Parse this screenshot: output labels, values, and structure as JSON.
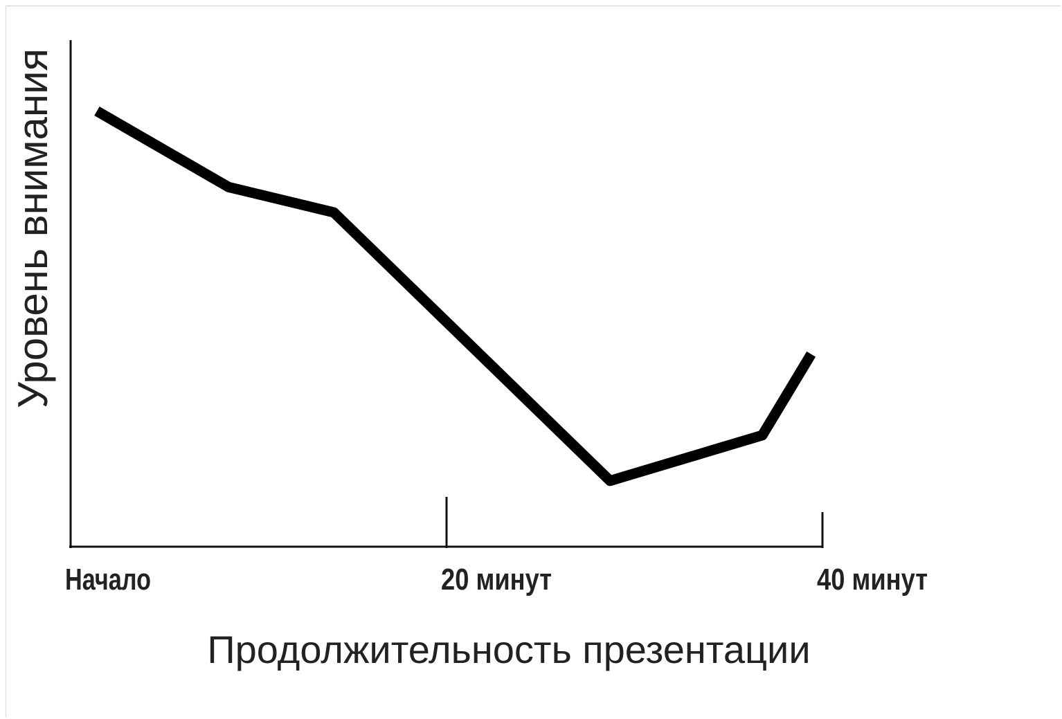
{
  "chart_data": {
    "type": "line",
    "title": "",
    "xlabel": "Продолжительность презентации",
    "ylabel": "Уровень внимания",
    "x_tick_labels": [
      {
        "x": 0,
        "label": "Начало"
      },
      {
        "x": 20,
        "label": "20 минут"
      },
      {
        "x": 40,
        "label": "40 минут"
      }
    ],
    "xlim": [
      0,
      40
    ],
    "ylim": [
      0,
      100
    ],
    "grid": false,
    "series": [
      {
        "x": [
          1.4,
          8.4,
          14,
          28.7,
          36.8,
          39.4
        ],
        "y": [
          86,
          71,
          66,
          13,
          22,
          38
        ]
      }
    ],
    "line_color": "#000000"
  }
}
